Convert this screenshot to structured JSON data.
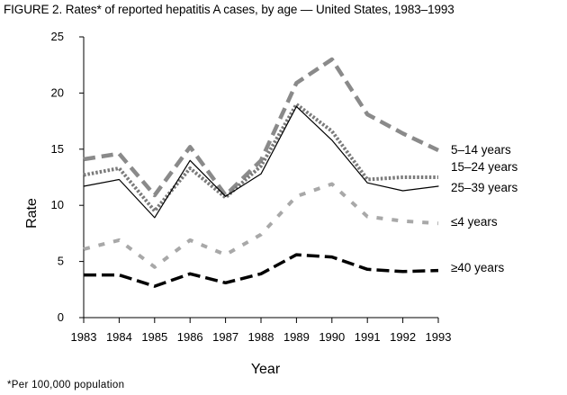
{
  "figure": {
    "title": "FIGURE 2. Rates* of reported hepatitis A cases, by age — United States, 1983–1993",
    "footnote": "*Per 100,000 population"
  },
  "chart_data": {
    "type": "line",
    "title": "FIGURE 2. Rates* of reported hepatitis A cases, by age — United States, 1983–1993",
    "xlabel": "Year",
    "ylabel": "Rate",
    "x": [
      1983,
      1984,
      1985,
      1986,
      1987,
      1988,
      1989,
      1990,
      1991,
      1992,
      1993
    ],
    "ylim": [
      0,
      25
    ],
    "yticks": [
      0,
      5,
      10,
      15,
      20,
      25
    ],
    "grid": false,
    "series": [
      {
        "name": "5–14 years",
        "style": "long-dash-gray",
        "color": "#8a8a8a",
        "values": [
          14.1,
          14.6,
          10.9,
          15.2,
          10.9,
          14.0,
          20.9,
          23.0,
          18.1,
          16.4,
          14.9
        ]
      },
      {
        "name": "15–24 years",
        "style": "dotted-gray",
        "color": "#7a7a7a",
        "values": [
          12.7,
          13.3,
          9.5,
          13.3,
          10.7,
          13.5,
          19.0,
          16.6,
          12.3,
          12.5,
          12.5
        ]
      },
      {
        "name": "25–39 years",
        "style": "solid-thin",
        "color": "#000000",
        "values": [
          11.7,
          12.3,
          8.9,
          14.0,
          10.8,
          12.8,
          18.8,
          15.8,
          12.0,
          11.3,
          11.7
        ]
      },
      {
        "name": "≤4 years",
        "style": "dash-light-gray",
        "color": "#a8a8a8",
        "values": [
          6.1,
          6.9,
          4.5,
          6.9,
          5.6,
          7.4,
          10.8,
          11.9,
          9.0,
          8.6,
          8.4
        ]
      },
      {
        "name": "≥40 years",
        "style": "dash-black",
        "color": "#000000",
        "values": [
          3.8,
          3.8,
          2.8,
          3.9,
          3.1,
          3.9,
          5.6,
          5.4,
          4.3,
          4.1,
          4.2
        ]
      }
    ]
  }
}
